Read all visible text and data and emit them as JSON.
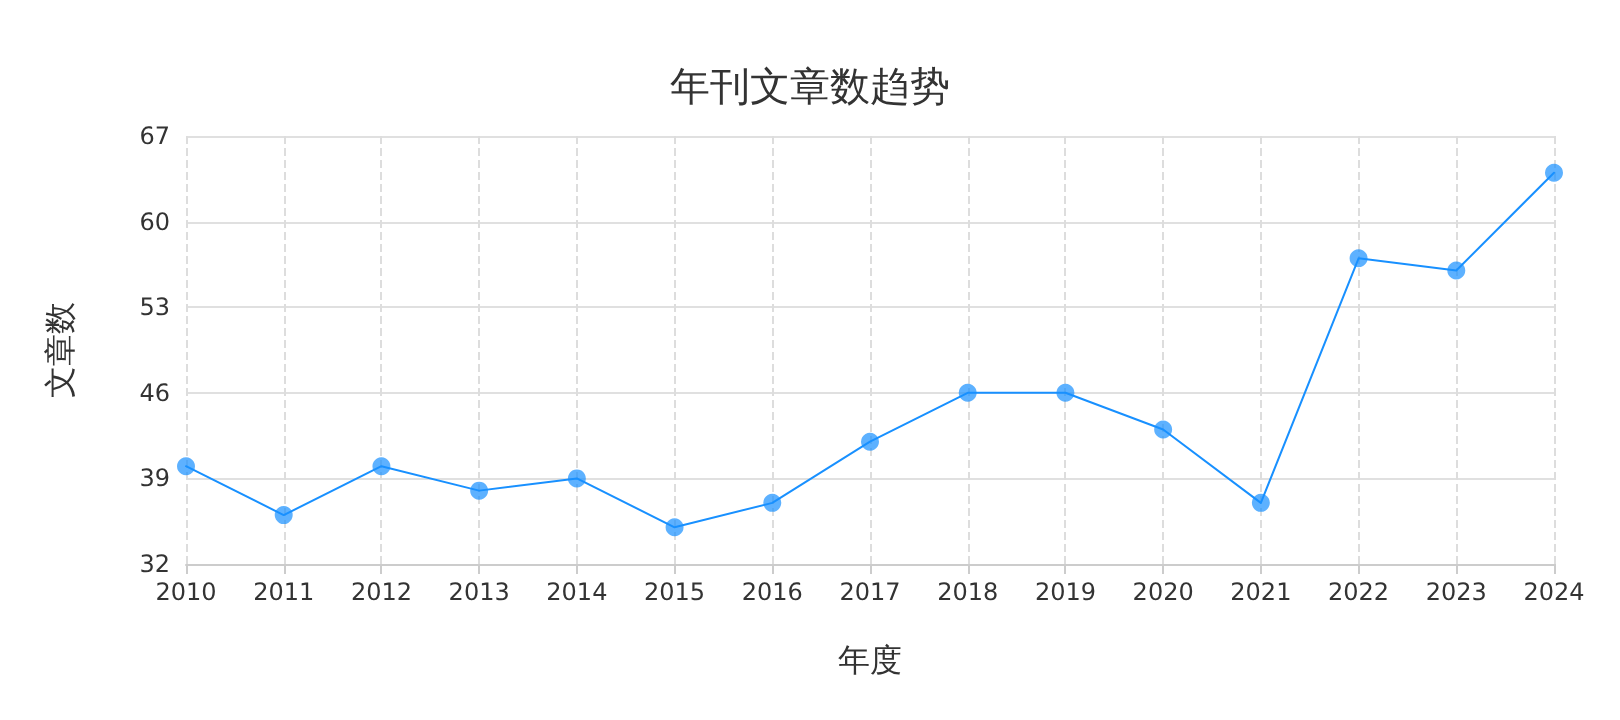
{
  "chart_data": {
    "type": "line",
    "title": "年刊文章数趋势",
    "xlabel": "年度",
    "ylabel": "文章数",
    "categories": [
      "2010",
      "2011",
      "2012",
      "2013",
      "2014",
      "2015",
      "2016",
      "2017",
      "2018",
      "2019",
      "2020",
      "2021",
      "2022",
      "2023",
      "2024"
    ],
    "series": [
      {
        "color": "#1890ff",
        "values": [
          40,
          36,
          40,
          38,
          39,
          35,
          37,
          42,
          46,
          46,
          43,
          37,
          57,
          56,
          64
        ]
      }
    ],
    "ylim": [
      32,
      67
    ],
    "yticks": [
      32,
      39,
      46,
      53,
      60,
      67
    ],
    "grid": true,
    "marker": "circle",
    "line_style": "solid"
  }
}
